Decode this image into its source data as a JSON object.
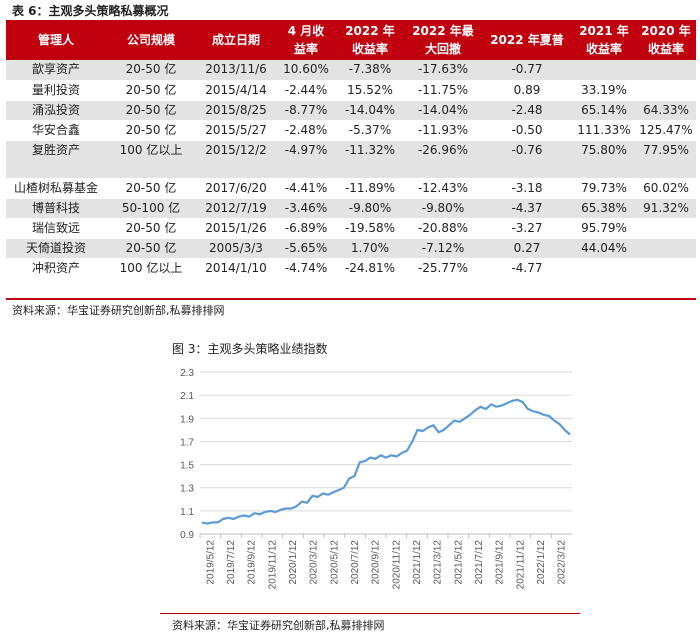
{
  "table": {
    "title": "表 6：主观多头策略私募概况",
    "headers": [
      [
        "管理人",
        ""
      ],
      [
        "公司规模",
        ""
      ],
      [
        "成立日期",
        ""
      ],
      [
        "4 月收",
        "益率"
      ],
      [
        "2022 年",
        "收益率"
      ],
      [
        "2022 年最",
        "大回撤"
      ],
      [
        "2022 年夏普",
        ""
      ],
      [
        "2021 年",
        "收益率"
      ],
      [
        "2020 年",
        "收益率"
      ]
    ],
    "rows": [
      [
        "歆享资产",
        "20-50 亿",
        "2013/11/6",
        "10.60%",
        "-7.38%",
        "-17.63%",
        "-0.77",
        "",
        ""
      ],
      [
        "量利投资",
        "20-50 亿",
        "2015/4/14",
        "-2.44%",
        "15.52%",
        "-11.75%",
        "0.89",
        "33.19%",
        ""
      ],
      [
        "涌泓投资",
        "20-50 亿",
        "2015/8/25",
        "-8.77%",
        "-14.04%",
        "-14.04%",
        "-2.48",
        "65.14%",
        "64.33%"
      ],
      [
        "华安合鑫",
        "20-50 亿",
        "2015/5/27",
        "-2.48%",
        "-5.37%",
        "-11.93%",
        "-0.50",
        "111.33%",
        "125.47%"
      ],
      [
        "复胜资产",
        "100 亿以上",
        "2015/12/2",
        "-4.97%",
        "-11.32%",
        "-26.96%",
        "-0.76",
        "75.80%",
        "77.95%"
      ],
      [
        "山楂树私募基金",
        "20-50 亿",
        "2017/6/20",
        "-4.41%",
        "-11.89%",
        "-12.43%",
        "-3.18",
        "79.73%",
        "60.02%"
      ],
      [
        "博普科技",
        "50-100 亿",
        "2012/7/19",
        "-3.46%",
        "-9.80%",
        "-9.80%",
        "-4.37",
        "65.38%",
        "91.32%"
      ],
      [
        "瑞信致远",
        "20-50 亿",
        "2015/1/26",
        "-6.89%",
        "-19.58%",
        "-20.88%",
        "-3.27",
        "95.79%",
        ""
      ],
      [
        "天倚道投资",
        "20-50 亿",
        "2005/3/3",
        "-5.65%",
        "1.70%",
        "-7.12%",
        "0.27",
        "44.04%",
        ""
      ],
      [
        "冲积资产",
        "100 亿以上",
        "2014/1/10",
        "-4.74%",
        "-24.81%",
        "-25.77%",
        "-4.77",
        "",
        ""
      ]
    ],
    "source": "资料来源：华宝证券研究创新部,私募排排网"
  },
  "chart": {
    "figure_title": "图 3：主观多头策略业绩指数",
    "source": "资料来源：华宝证券研究创新部,私募排排网"
  },
  "chart_data": {
    "type": "line",
    "title": "主观多头策略业绩指数",
    "xlabel": "",
    "ylabel": "",
    "ylim": [
      0.9,
      2.3
    ],
    "yticks": [
      0.9,
      1.1,
      1.3,
      1.5,
      1.7,
      1.9,
      2.1,
      2.3
    ],
    "x_tick_labels": [
      "2019/5/12",
      "2019/7/12",
      "2019/9/12",
      "2019/11/12",
      "2020/1/12",
      "2020/3/12",
      "2020/5/12",
      "2020/7/12",
      "2020/9/12",
      "2020/11/12",
      "2021/1/12",
      "2021/3/12",
      "2021/5/12",
      "2021/7/12",
      "2021/9/12",
      "2021/11/12",
      "2022/1/12",
      "2022/3/12"
    ],
    "grid": true,
    "legend": "none",
    "color": "#5b9bd5",
    "series": [
      {
        "values": [
          1.0,
          0.99,
          1.0,
          1.0,
          1.03,
          1.04,
          1.03,
          1.05,
          1.06,
          1.05,
          1.08,
          1.07,
          1.09,
          1.1,
          1.09,
          1.11,
          1.12,
          1.12,
          1.14,
          1.18,
          1.17,
          1.23,
          1.22,
          1.25,
          1.24,
          1.26,
          1.28,
          1.3,
          1.38,
          1.4,
          1.52,
          1.53,
          1.56,
          1.55,
          1.58,
          1.56,
          1.58,
          1.57,
          1.6,
          1.62,
          1.7,
          1.8,
          1.79,
          1.82,
          1.84,
          1.78,
          1.8,
          1.84,
          1.88,
          1.87,
          1.9,
          1.93,
          1.97,
          2.0,
          1.98,
          2.02,
          2.0,
          2.01,
          2.03,
          2.05,
          2.06,
          2.04,
          1.98,
          1.96,
          1.95,
          1.93,
          1.92,
          1.88,
          1.85,
          1.8,
          1.76
        ]
      }
    ]
  }
}
